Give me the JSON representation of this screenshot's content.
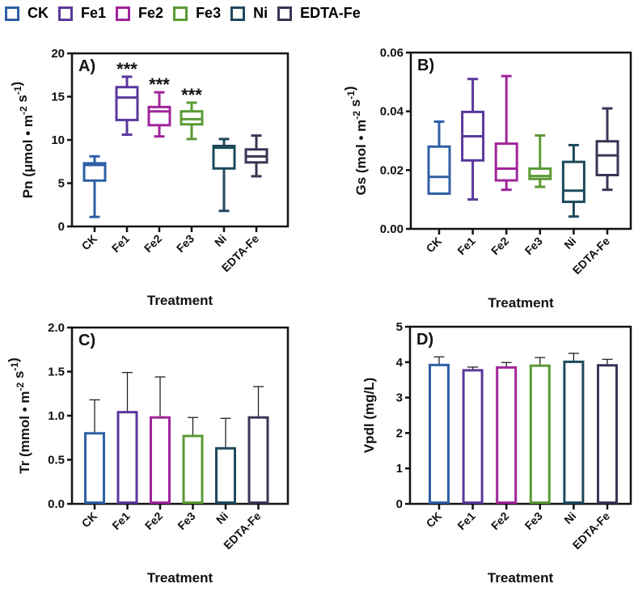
{
  "legend": [
    {
      "label": "CK",
      "color": "#2f5fa6"
    },
    {
      "label": "Fe1",
      "color": "#5a389c"
    },
    {
      "label": "Fe2",
      "color": "#a0259a"
    },
    {
      "label": "Fe3",
      "color": "#5b9a35"
    },
    {
      "label": "Ni",
      "color": "#1e4a5d"
    },
    {
      "label": "EDTA-Fe",
      "color": "#393555"
    }
  ],
  "chart_data": [
    {
      "type": "box",
      "panel_label": "A)",
      "categories": [
        "CK",
        "Fe1",
        "Fe2",
        "Fe3",
        "Ni",
        "EDTA-Fe"
      ],
      "xlabel": "Treatment",
      "ylabel": [
        {
          "t": "Pn (μmol • m"
        },
        {
          "sup": "-2"
        },
        {
          "t": " s"
        },
        {
          "sup": "-1"
        },
        {
          "t": ")"
        }
      ],
      "ylim": [
        0,
        20
      ],
      "yticks": [
        "0",
        "5",
        "10",
        "15",
        "20"
      ],
      "boxes": [
        {
          "min": 1.1,
          "q1": 5.3,
          "median": 7.1,
          "q3": 7.3,
          "max": 8.1
        },
        {
          "min": 10.6,
          "q1": 12.3,
          "median": 14.9,
          "q3": 16.1,
          "max": 17.3
        },
        {
          "min": 10.4,
          "q1": 11.7,
          "median": 13.3,
          "q3": 13.8,
          "max": 15.5
        },
        {
          "min": 10.1,
          "q1": 11.8,
          "median": 12.4,
          "q3": 13.3,
          "max": 14.3
        },
        {
          "min": 1.8,
          "q1": 6.7,
          "median": 9.1,
          "q3": 9.3,
          "max": 10.1
        },
        {
          "min": 5.8,
          "q1": 7.4,
          "median": 8.1,
          "q3": 8.9,
          "max": 10.5
        }
      ],
      "annotations": [
        "",
        "***",
        "***",
        "***",
        "",
        ""
      ]
    },
    {
      "type": "box",
      "panel_label": "B)",
      "categories": [
        "CK",
        "Fe1",
        "Fe2",
        "Fe3",
        "Ni",
        "EDTA-Fe"
      ],
      "xlabel": "Treatment",
      "ylabel": [
        {
          "t": "Gs (mol • m"
        },
        {
          "sup": "-2"
        },
        {
          "t": " s"
        },
        {
          "sup": "-1"
        },
        {
          "t": ")"
        }
      ],
      "ylim": [
        0,
        0.06
      ],
      "yticks": [
        "0.00",
        "0.02",
        "0.04",
        "0.06"
      ],
      "boxes": [
        {
          "min": 0.012,
          "q1": 0.012,
          "median": 0.0177,
          "q3": 0.028,
          "max": 0.0365
        },
        {
          "min": 0.01,
          "q1": 0.0233,
          "median": 0.0315,
          "q3": 0.0398,
          "max": 0.051
        },
        {
          "min": 0.0133,
          "q1": 0.0165,
          "median": 0.0205,
          "q3": 0.029,
          "max": 0.052
        },
        {
          "min": 0.0143,
          "q1": 0.017,
          "median": 0.018,
          "q3": 0.0205,
          "max": 0.0318
        },
        {
          "min": 0.0042,
          "q1": 0.0092,
          "median": 0.013,
          "q3": 0.0228,
          "max": 0.0285
        },
        {
          "min": 0.0133,
          "q1": 0.0183,
          "median": 0.025,
          "q3": 0.0298,
          "max": 0.041
        }
      ],
      "annotations": [
        "",
        "",
        "",
        "",
        "",
        ""
      ]
    },
    {
      "type": "bar",
      "panel_label": "C)",
      "categories": [
        "CK",
        "Fe1",
        "Fe2",
        "Fe3",
        "Ni",
        "EDTA-Fe"
      ],
      "xlabel": "Treatment",
      "ylabel": [
        {
          "t": "Tr  (mmol • m"
        },
        {
          "sup": "-2"
        },
        {
          "t": " s"
        },
        {
          "sup": "-1"
        },
        {
          "t": ")"
        }
      ],
      "ylim": [
        0,
        2.0
      ],
      "yticks": [
        "0.0",
        "0.5",
        "1.0",
        "1.5",
        "2.0"
      ],
      "values": [
        0.8,
        1.04,
        0.98,
        0.77,
        0.63,
        0.98
      ],
      "error_upper": [
        1.18,
        1.49,
        1.44,
        0.98,
        0.97,
        1.33
      ]
    },
    {
      "type": "bar",
      "panel_label": "D)",
      "categories": [
        "CK",
        "Fe1",
        "Fe2",
        "Fe3",
        "Ni",
        "EDTA-Fe"
      ],
      "xlabel": "Treatment",
      "ylabel": [
        {
          "t": "Vpdl  (mg/L)"
        }
      ],
      "ylim": [
        0,
        5
      ],
      "yticks": [
        "0",
        "1",
        "2",
        "3",
        "4",
        "5"
      ],
      "values": [
        3.92,
        3.77,
        3.85,
        3.9,
        4.01,
        3.91
      ],
      "error_upper": [
        4.15,
        3.86,
        3.99,
        4.13,
        4.25,
        4.08
      ]
    }
  ]
}
